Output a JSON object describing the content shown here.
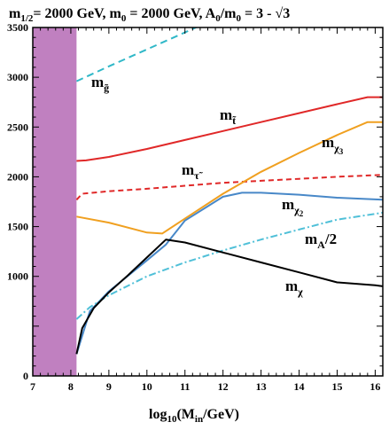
{
  "chart_data": {
    "type": "line",
    "title": "m1/2= 2000 GeV, m0 = 2000 GeV, A0/m0 = 3 - √3",
    "title_parts": {
      "m_half": "m",
      "m_half_sub": "1/2",
      "m_half_rest": "= 2000 GeV, ",
      "m0": "m",
      "m0_sub": "0",
      "m0_rest": " = 2000 GeV, ",
      "A0": "A",
      "A0_sub": "0",
      "A0_mid": "/m",
      "A0_sub2": "0",
      "A0_rest": " = 3 - √3"
    },
    "xlabel": "log10(Min/GeV)",
    "xlabel_parts": {
      "a": "log",
      "a_sub": "10",
      "b": "(M",
      "b_sub": "in",
      "c": "/GeV)"
    },
    "ylabel": "",
    "xlim": [
      7,
      16.2
    ],
    "ylim": [
      0,
      3500
    ],
    "xticks": [
      "7",
      "8",
      "9",
      "10",
      "11",
      "12",
      "13",
      "14",
      "15",
      "16"
    ],
    "yticks": [
      "0",
      "1000",
      "1500",
      "2000",
      "2500",
      "3000",
      "3500"
    ],
    "excluded_region": {
      "x_from": 7,
      "x_to": 8.15,
      "color": "#c080c0"
    },
    "series": [
      {
        "key": "gluino",
        "color": "#30b8c8",
        "dash": "8,5",
        "x": [
          8.15,
          9,
          10,
          11,
          11.4
        ],
        "y": [
          2960,
          3110,
          3280,
          3450,
          3520
        ]
      },
      {
        "key": "stop",
        "color": "#e02828",
        "dash": "",
        "x": [
          8.15,
          8.4,
          9,
          10,
          11,
          12,
          13,
          14,
          15,
          15.8,
          16.2
        ],
        "y": [
          2160,
          2165,
          2200,
          2280,
          2370,
          2460,
          2550,
          2640,
          2730,
          2800,
          2800
        ]
      },
      {
        "key": "stau",
        "color": "#e02828",
        "dash": "6,4",
        "x": [
          8.15,
          8.3,
          9,
          10,
          11,
          12,
          13,
          14,
          15,
          16.2
        ],
        "y": [
          1770,
          1830,
          1855,
          1880,
          1910,
          1940,
          1960,
          1980,
          2000,
          2020
        ]
      },
      {
        "key": "chi3",
        "color": "#f0a020",
        "dash": "",
        "x": [
          8.15,
          9,
          10,
          10.4,
          11,
          12,
          13,
          14,
          15,
          15.8,
          16.2
        ],
        "y": [
          1600,
          1540,
          1440,
          1430,
          1580,
          1830,
          2050,
          2240,
          2420,
          2550,
          2550
        ]
      },
      {
        "key": "chi2",
        "color": "#4888c8",
        "dash": "",
        "x": [
          8.15,
          8.5,
          9,
          10,
          10.5,
          11,
          12,
          12.5,
          13,
          14,
          15,
          16.2
        ],
        "y": [
          220,
          650,
          850,
          1160,
          1320,
          1560,
          1800,
          1840,
          1840,
          1820,
          1790,
          1770
        ]
      },
      {
        "key": "mA2",
        "color": "#50c0d8",
        "dash": "8,3,2,3",
        "x": [
          8.15,
          8.5,
          9,
          10,
          11,
          12,
          13,
          14,
          15,
          16.2
        ],
        "y": [
          570,
          690,
          810,
          1000,
          1140,
          1260,
          1370,
          1470,
          1570,
          1640
        ]
      },
      {
        "key": "chi",
        "color": "#000000",
        "dash": "",
        "x": [
          8.15,
          8.3,
          8.6,
          9,
          9.5,
          10,
          10.5,
          11,
          12,
          13,
          14,
          15,
          16,
          16.2
        ],
        "y": [
          220,
          480,
          680,
          840,
          1010,
          1190,
          1370,
          1340,
          1240,
          1140,
          1040,
          940,
          910,
          900
        ]
      }
    ],
    "labels": {
      "gluino": {
        "main": "m",
        "sub": "g̃"
      },
      "stop": {
        "main": "m",
        "sub": "t̃"
      },
      "stau": {
        "main": "m",
        "sub": "τ̃"
      },
      "chi3": {
        "main": "m",
        "sub": "χ",
        "subsub": "3"
      },
      "chi2": {
        "main": "m",
        "sub": "χ",
        "subsub": "2"
      },
      "mA2": {
        "main": "m",
        "sub": "A",
        "rest": "/2"
      },
      "chi": {
        "main": "m",
        "sub": "χ"
      }
    }
  }
}
